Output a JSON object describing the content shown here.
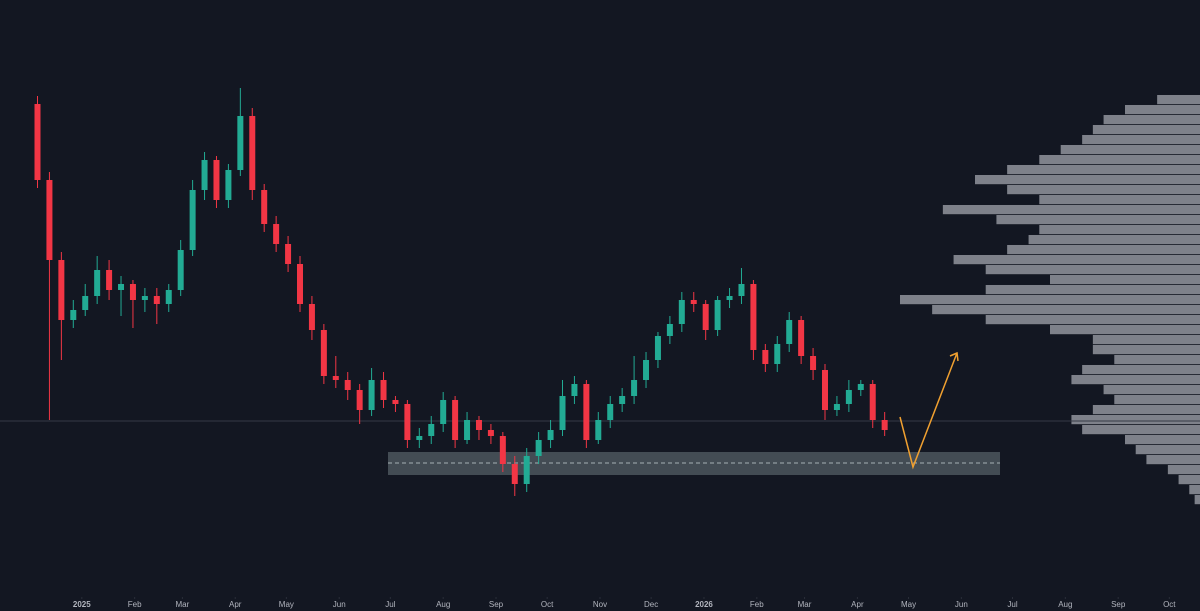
{
  "chart_data": {
    "type": "candlestick",
    "up_color": "#22ab94",
    "down_color": "#f23645",
    "xlim": [
      -48,
      656
    ],
    "ylim": [
      0,
      145
    ],
    "xticks": [
      {
        "value": 0,
        "label": "2025"
      },
      {
        "value": 31,
        "label": "Feb"
      },
      {
        "value": 59,
        "label": "Mar"
      },
      {
        "value": 90,
        "label": "Apr"
      },
      {
        "value": 120,
        "label": "May"
      },
      {
        "value": 151,
        "label": "Jun"
      },
      {
        "value": 181,
        "label": "Jul"
      },
      {
        "value": 212,
        "label": "Aug"
      },
      {
        "value": 243,
        "label": "Sep"
      },
      {
        "value": 273,
        "label": "Oct"
      },
      {
        "value": 304,
        "label": "Nov"
      },
      {
        "value": 334,
        "label": "Dec"
      },
      {
        "value": 365,
        "label": "2026"
      },
      {
        "value": 396,
        "label": "Feb"
      },
      {
        "value": 424,
        "label": "Mar"
      },
      {
        "value": 455,
        "label": "Apr"
      },
      {
        "value": 485,
        "label": "May"
      },
      {
        "value": 516,
        "label": "Jun"
      },
      {
        "value": 546,
        "label": "Jul"
      },
      {
        "value": 577,
        "label": "Aug"
      },
      {
        "value": 608,
        "label": "Sep"
      },
      {
        "value": 638,
        "label": "Oct"
      }
    ],
    "x": [
      -26,
      -19,
      -12,
      -5,
      2,
      9,
      16,
      23,
      30,
      37,
      44,
      51,
      58,
      65,
      72,
      79,
      86,
      93,
      100,
      107,
      114,
      121,
      128,
      135,
      142,
      149,
      156,
      163,
      170,
      177,
      184,
      191,
      198,
      205,
      212,
      219,
      226,
      233,
      240,
      247,
      254,
      261,
      268,
      275,
      282,
      289,
      296,
      303,
      310,
      317,
      324,
      331,
      338,
      345,
      352,
      359,
      366,
      373,
      380,
      387,
      394,
      401,
      408,
      415,
      422,
      429,
      436,
      443,
      450,
      457,
      464,
      471
    ],
    "ohlc": [
      [
        119,
        121,
        98,
        100
      ],
      [
        100,
        102,
        40,
        80
      ],
      [
        80,
        82,
        55,
        65
      ],
      [
        65,
        70,
        63,
        67.5
      ],
      [
        67.5,
        74,
        66,
        71
      ],
      [
        71,
        81,
        69,
        77.5
      ],
      [
        77.5,
        80,
        70,
        72.5
      ],
      [
        72.5,
        76,
        66,
        74
      ],
      [
        74,
        75,
        63,
        70
      ],
      [
        70,
        73,
        67,
        71
      ],
      [
        71,
        73,
        64,
        69
      ],
      [
        69,
        74,
        67,
        72.5
      ],
      [
        72.5,
        85,
        71,
        82.5
      ],
      [
        82.5,
        100,
        81,
        97.5
      ],
      [
        97.5,
        107,
        95,
        105
      ],
      [
        105,
        106,
        93,
        95
      ],
      [
        95,
        104,
        93,
        102.5
      ],
      [
        102.5,
        123,
        101,
        116
      ],
      [
        116,
        118,
        95,
        97.5
      ],
      [
        97.5,
        99,
        87,
        89
      ],
      [
        89,
        91,
        82,
        84
      ],
      [
        84,
        86,
        77,
        79
      ],
      [
        79,
        81,
        67,
        69
      ],
      [
        69,
        71,
        60,
        62.5
      ],
      [
        62.5,
        64,
        49,
        51
      ],
      [
        51,
        56,
        48,
        50
      ],
      [
        50,
        52,
        45,
        47.5
      ],
      [
        47.5,
        49,
        39,
        42.5
      ],
      [
        42.5,
        53,
        41,
        50
      ],
      [
        50,
        52,
        43,
        45
      ],
      [
        45,
        46,
        42,
        44
      ],
      [
        44,
        45,
        33,
        35
      ],
      [
        35,
        38,
        33,
        36
      ],
      [
        36,
        41,
        34,
        39
      ],
      [
        39,
        47,
        37,
        45
      ],
      [
        45,
        46,
        33,
        35
      ],
      [
        35,
        42,
        34,
        40
      ],
      [
        40,
        41,
        35,
        37.5
      ],
      [
        37.5,
        39,
        34,
        36
      ],
      [
        36,
        37,
        27,
        29
      ],
      [
        29,
        31,
        21,
        24
      ],
      [
        24,
        33,
        22,
        31
      ],
      [
        31,
        37,
        29,
        35
      ],
      [
        35,
        40,
        33,
        37.5
      ],
      [
        37.5,
        50,
        36,
        46
      ],
      [
        46,
        51,
        44,
        49
      ],
      [
        49,
        50,
        33,
        35
      ],
      [
        35,
        42,
        34,
        40
      ],
      [
        40,
        46,
        38,
        44
      ],
      [
        44,
        48,
        42,
        46
      ],
      [
        46,
        56,
        44,
        50
      ],
      [
        50,
        57,
        48,
        55
      ],
      [
        55,
        62,
        53,
        61
      ],
      [
        61,
        66,
        59,
        64
      ],
      [
        64,
        72,
        62,
        70
      ],
      [
        70,
        72,
        67,
        69
      ],
      [
        69,
        70,
        60,
        62.5
      ],
      [
        62.5,
        71,
        61,
        70
      ],
      [
        70,
        73,
        68,
        71
      ],
      [
        71,
        78,
        69,
        74
      ],
      [
        74,
        75,
        55,
        57.5
      ],
      [
        57.5,
        59,
        52,
        54
      ],
      [
        54,
        61,
        52,
        59
      ],
      [
        59,
        67,
        57,
        65
      ],
      [
        65,
        66,
        54,
        56
      ],
      [
        56,
        58,
        50,
        52.5
      ],
      [
        52.5,
        54,
        40,
        42.5
      ],
      [
        42.5,
        46,
        41,
        44
      ],
      [
        44,
        50,
        42,
        47.5
      ],
      [
        47.5,
        50,
        46,
        49
      ],
      [
        49,
        50,
        38,
        40
      ],
      [
        40,
        42,
        36,
        37.5
      ]
    ],
    "zone": {
      "top": 32,
      "bottom": 26.25,
      "mid": 29.25,
      "color": "#b2c7c9"
    },
    "level_line": 39.75,
    "volume_profile": {
      "color": "#a3a6ad",
      "levels": [
        122.5,
        120,
        117.5,
        115,
        112.5,
        110,
        107.5,
        105,
        102.5,
        100,
        97.5,
        95,
        92.5,
        90,
        87.5,
        85,
        82.5,
        80,
        77.5,
        75,
        72.5,
        70,
        67.5,
        65,
        62.5,
        60,
        57.5,
        55,
        52.5,
        50,
        47.5,
        45,
        42.5,
        40,
        37.5,
        35,
        32.5,
        30,
        27.5,
        25,
        22.5,
        20
      ],
      "values": [
        0,
        40,
        70,
        90,
        100,
        110,
        130,
        150,
        180,
        210,
        180,
        150,
        240,
        190,
        150,
        160,
        180,
        230,
        200,
        140,
        200,
        280,
        250,
        200,
        140,
        100,
        100,
        80,
        110,
        120,
        90,
        80,
        100,
        120,
        110,
        70,
        60,
        50,
        30,
        20,
        10,
        5
      ]
    }
  }
}
